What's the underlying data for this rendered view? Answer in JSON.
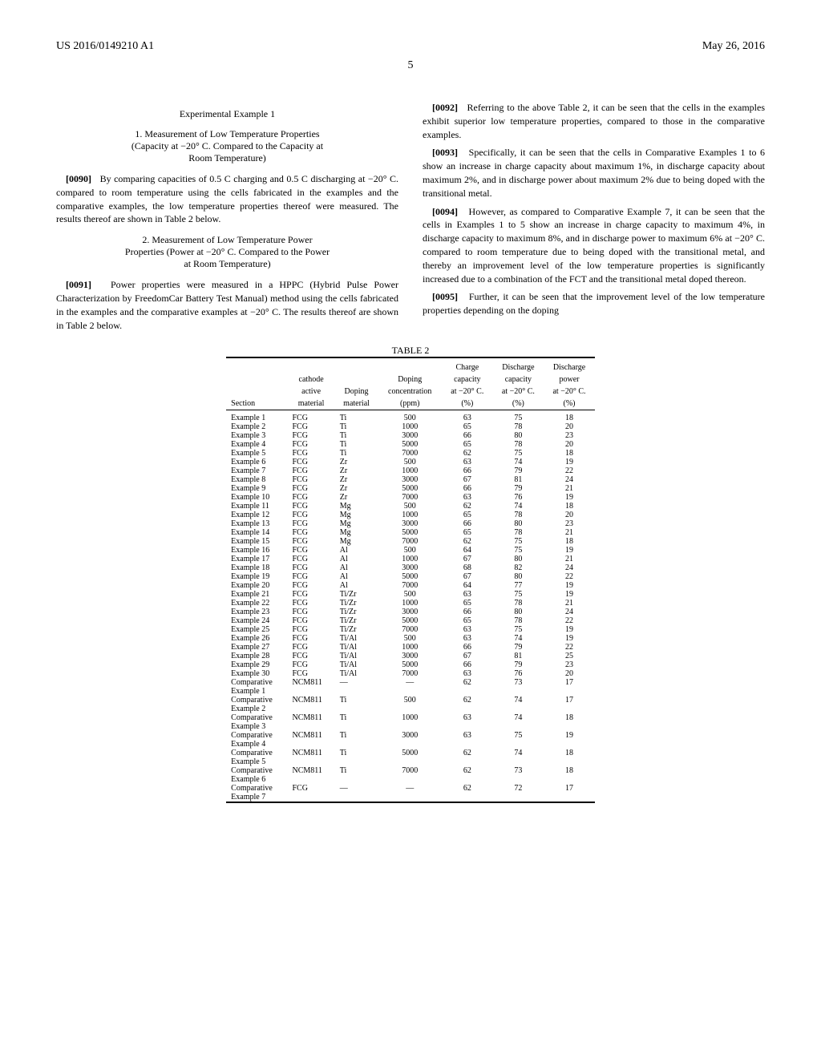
{
  "header": {
    "left": "US 2016/0149210 A1",
    "right": "May 26, 2016"
  },
  "page_number": "5",
  "left_col": {
    "exp_title": "Experimental Example 1",
    "sec1_title_l1": "1. Measurement of Low Temperature Properties",
    "sec1_title_l2": "(Capacity at −20° C. Compared to the Capacity at",
    "sec1_title_l3": "Room Temperature)",
    "p0090_num": "[0090]",
    "p0090": "By comparing capacities of 0.5 C charging and 0.5 C discharging at −20° C. compared to room temperature using the cells fabricated in the examples and the comparative examples, the low temperature properties thereof were measured. The results thereof are shown in Table 2 below.",
    "sec2_title_l1": "2. Measurement of Low Temperature Power",
    "sec2_title_l2": "Properties (Power at −20° C. Compared to the Power",
    "sec2_title_l3": "at Room Temperature)",
    "p0091_num": "[0091]",
    "p0091": "Power properties were measured in a HPPC (Hybrid Pulse Power Characterization by FreedomCar Battery Test Manual) method using the cells fabricated in the examples and the comparative examples at −20° C. The results thereof are shown in Table 2 below."
  },
  "right_col": {
    "p0092_num": "[0092]",
    "p0092": "Referring to the above Table 2, it can be seen that the cells in the examples exhibit superior low temperature properties, compared to those in the comparative examples.",
    "p0093_num": "[0093]",
    "p0093": "Specifically, it can be seen that the cells in Comparative Examples 1 to 6 show an increase in charge capacity about maximum 1%, in discharge capacity about maximum 2%, and in discharge power about maximum 2% due to being doped with the transitional metal.",
    "p0094_num": "[0094]",
    "p0094": "However, as compared to Comparative Example 7, it can be seen that the cells in Examples 1 to 5 show an increase in charge capacity to maximum 4%, in discharge capacity to maximum 8%, and in discharge power to maximum 6% at −20° C. compared to room temperature due to being doped with the transitional metal, and thereby an improvement level of the low temperature properties is significantly increased due to a combination of the FCT and the transitional metal doped thereon.",
    "p0095_num": "[0095]",
    "p0095": "Further, it can be seen that the improvement level of the low temperature properties depending on the doping"
  },
  "table": {
    "caption": "TABLE 2",
    "headers": {
      "section": "Section",
      "cathode_l1": "cathode",
      "cathode_l2": "active",
      "cathode_l3": "material",
      "doping_l1": "Doping",
      "doping_l2": "material",
      "conc_l1": "Doping",
      "conc_l2": "concentration",
      "conc_l3": "(ppm)",
      "charge_l1": "Charge",
      "charge_l2": "capacity",
      "charge_l3": "at −20° C.",
      "charge_l4": "(%)",
      "discharge_l1": "Discharge",
      "discharge_l2": "capacity",
      "discharge_l3": "at −20° C.",
      "discharge_l4": "(%)",
      "power_l1": "Discharge",
      "power_l2": "power",
      "power_l3": "at −20° C.",
      "power_l4": "(%)"
    },
    "rows": [
      {
        "s": "Example 1",
        "c": "FCG",
        "d": "Ti",
        "p": "500",
        "ch": "63",
        "di": "75",
        "pw": "18"
      },
      {
        "s": "Example 2",
        "c": "FCG",
        "d": "Ti",
        "p": "1000",
        "ch": "65",
        "di": "78",
        "pw": "20"
      },
      {
        "s": "Example 3",
        "c": "FCG",
        "d": "Ti",
        "p": "3000",
        "ch": "66",
        "di": "80",
        "pw": "23"
      },
      {
        "s": "Example 4",
        "c": "FCG",
        "d": "Ti",
        "p": "5000",
        "ch": "65",
        "di": "78",
        "pw": "20"
      },
      {
        "s": "Example 5",
        "c": "FCG",
        "d": "Ti",
        "p": "7000",
        "ch": "62",
        "di": "75",
        "pw": "18"
      },
      {
        "s": "Example 6",
        "c": "FCG",
        "d": "Zr",
        "p": "500",
        "ch": "63",
        "di": "74",
        "pw": "19"
      },
      {
        "s": "Example 7",
        "c": "FCG",
        "d": "Zr",
        "p": "1000",
        "ch": "66",
        "di": "79",
        "pw": "22"
      },
      {
        "s": "Example 8",
        "c": "FCG",
        "d": "Zr",
        "p": "3000",
        "ch": "67",
        "di": "81",
        "pw": "24"
      },
      {
        "s": "Example 9",
        "c": "FCG",
        "d": "Zr",
        "p": "5000",
        "ch": "66",
        "di": "79",
        "pw": "21"
      },
      {
        "s": "Example 10",
        "c": "FCG",
        "d": "Zr",
        "p": "7000",
        "ch": "63",
        "di": "76",
        "pw": "19"
      },
      {
        "s": "Example 11",
        "c": "FCG",
        "d": "Mg",
        "p": "500",
        "ch": "62",
        "di": "74",
        "pw": "18"
      },
      {
        "s": "Example 12",
        "c": "FCG",
        "d": "Mg",
        "p": "1000",
        "ch": "65",
        "di": "78",
        "pw": "20"
      },
      {
        "s": "Example 13",
        "c": "FCG",
        "d": "Mg",
        "p": "3000",
        "ch": "66",
        "di": "80",
        "pw": "23"
      },
      {
        "s": "Example 14",
        "c": "FCG",
        "d": "Mg",
        "p": "5000",
        "ch": "65",
        "di": "78",
        "pw": "21"
      },
      {
        "s": "Example 15",
        "c": "FCG",
        "d": "Mg",
        "p": "7000",
        "ch": "62",
        "di": "75",
        "pw": "18"
      },
      {
        "s": "Example 16",
        "c": "FCG",
        "d": "Al",
        "p": "500",
        "ch": "64",
        "di": "75",
        "pw": "19"
      },
      {
        "s": "Example 17",
        "c": "FCG",
        "d": "Al",
        "p": "1000",
        "ch": "67",
        "di": "80",
        "pw": "21"
      },
      {
        "s": "Example 18",
        "c": "FCG",
        "d": "Al",
        "p": "3000",
        "ch": "68",
        "di": "82",
        "pw": "24"
      },
      {
        "s": "Example 19",
        "c": "FCG",
        "d": "Al",
        "p": "5000",
        "ch": "67",
        "di": "80",
        "pw": "22"
      },
      {
        "s": "Example 20",
        "c": "FCG",
        "d": "Al",
        "p": "7000",
        "ch": "64",
        "di": "77",
        "pw": "19"
      },
      {
        "s": "Example 21",
        "c": "FCG",
        "d": "Ti/Zr",
        "p": "500",
        "ch": "63",
        "di": "75",
        "pw": "19"
      },
      {
        "s": "Example 22",
        "c": "FCG",
        "d": "Ti/Zr",
        "p": "1000",
        "ch": "65",
        "di": "78",
        "pw": "21"
      },
      {
        "s": "Example 23",
        "c": "FCG",
        "d": "Ti/Zr",
        "p": "3000",
        "ch": "66",
        "di": "80",
        "pw": "24"
      },
      {
        "s": "Example 24",
        "c": "FCG",
        "d": "Ti/Zr",
        "p": "5000",
        "ch": "65",
        "di": "78",
        "pw": "22"
      },
      {
        "s": "Example 25",
        "c": "FCG",
        "d": "Ti/Zr",
        "p": "7000",
        "ch": "63",
        "di": "75",
        "pw": "19"
      },
      {
        "s": "Example 26",
        "c": "FCG",
        "d": "Ti/Al",
        "p": "500",
        "ch": "63",
        "di": "74",
        "pw": "19"
      },
      {
        "s": "Example 27",
        "c": "FCG",
        "d": "Ti/Al",
        "p": "1000",
        "ch": "66",
        "di": "79",
        "pw": "22"
      },
      {
        "s": "Example 28",
        "c": "FCG",
        "d": "Ti/Al",
        "p": "3000",
        "ch": "67",
        "di": "81",
        "pw": "25"
      },
      {
        "s": "Example 29",
        "c": "FCG",
        "d": "Ti/Al",
        "p": "5000",
        "ch": "66",
        "di": "79",
        "pw": "23"
      },
      {
        "s": "Example 30",
        "c": "FCG",
        "d": "Ti/Al",
        "p": "7000",
        "ch": "63",
        "di": "76",
        "pw": "20"
      },
      {
        "s": "Comparative",
        "s2": "Example 1",
        "c": "NCM811",
        "d": "—",
        "p": "—",
        "ch": "62",
        "di": "73",
        "pw": "17"
      },
      {
        "s": "Comparative",
        "s2": "Example 2",
        "c": "NCM811",
        "d": "Ti",
        "p": "500",
        "ch": "62",
        "di": "74",
        "pw": "17"
      },
      {
        "s": "Comparative",
        "s2": "Example 3",
        "c": "NCM811",
        "d": "Ti",
        "p": "1000",
        "ch": "63",
        "di": "74",
        "pw": "18"
      },
      {
        "s": "Comparative",
        "s2": "Example 4",
        "c": "NCM811",
        "d": "Ti",
        "p": "3000",
        "ch": "63",
        "di": "75",
        "pw": "19"
      },
      {
        "s": "Comparative",
        "s2": "Example 5",
        "c": "NCM811",
        "d": "Ti",
        "p": "5000",
        "ch": "62",
        "di": "74",
        "pw": "18"
      },
      {
        "s": "Comparative",
        "s2": "Example 6",
        "c": "NCM811",
        "d": "Ti",
        "p": "7000",
        "ch": "62",
        "di": "73",
        "pw": "18"
      },
      {
        "s": "Comparative",
        "s2": "Example 7",
        "c": "FCG",
        "d": "—",
        "p": "—",
        "ch": "62",
        "di": "72",
        "pw": "17"
      }
    ]
  }
}
